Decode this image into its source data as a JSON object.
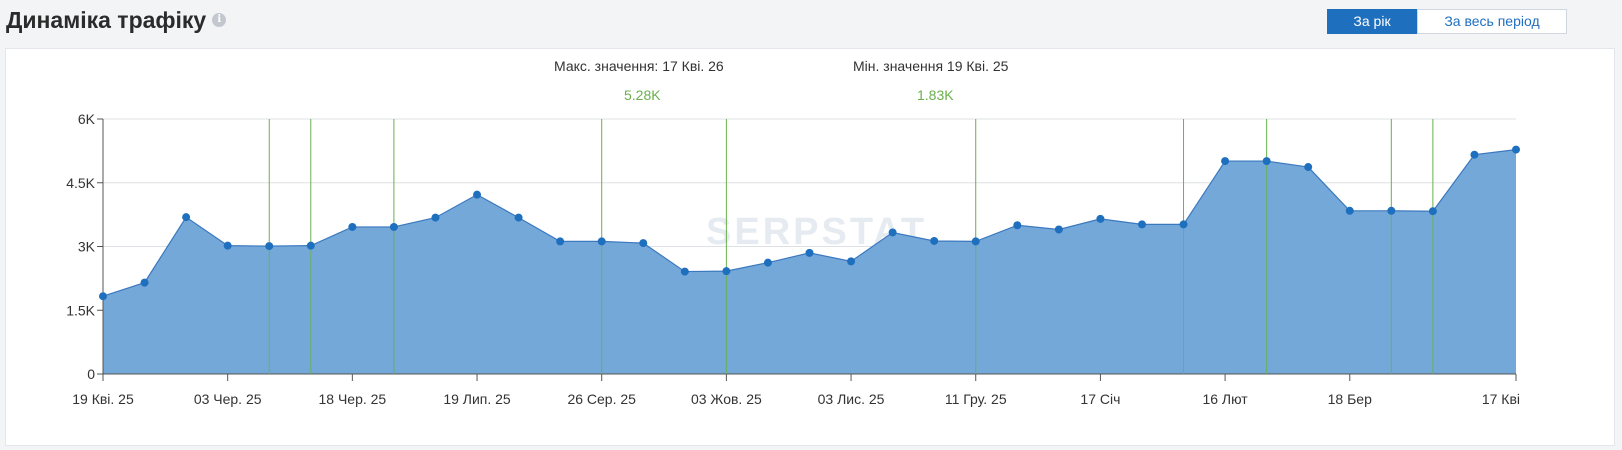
{
  "header": {
    "title": "Динаміка трафіку",
    "info_icon": "i",
    "toggle": [
      {
        "label": "За рік",
        "active": true
      },
      {
        "label": "За весь період",
        "active": false
      }
    ]
  },
  "colors": {
    "accent": "#1f6fbf",
    "area": "#74a8d8",
    "line": "#3a78bf",
    "point": "#1f6fbf",
    "marker_line": "#6ab04c",
    "annotation_value": "#6ab04c"
  },
  "annotations": {
    "max_label": "Макс. значення: 17 Кві. 26",
    "max_value": "5.28K",
    "min_label": "Мін. значення 19 Кві. 25",
    "min_value": "1.83K"
  },
  "watermark": "SERPSTAT",
  "chart_data": {
    "type": "area",
    "title": "Динаміка трафіку",
    "xlabel": "",
    "ylabel": "",
    "ylim": [
      0,
      6000
    ],
    "y_ticks": [
      0,
      1500,
      3000,
      4500,
      6000
    ],
    "y_tick_labels": [
      "0",
      "1.5K",
      "3K",
      "4.5K",
      "6K"
    ],
    "x_ticks": [
      {
        "index": 0,
        "label": "19 Кві. 25"
      },
      {
        "index": 3,
        "label": "03 Чер. 25"
      },
      {
        "index": 6,
        "label": "18 Чер. 25"
      },
      {
        "index": 9,
        "label": "19 Лип. 25"
      },
      {
        "index": 12,
        "label": "26 Сер. 25"
      },
      {
        "index": 15,
        "label": "03 Жов. 25"
      },
      {
        "index": 18,
        "label": "03 Лис. 25"
      },
      {
        "index": 21,
        "label": "11 Гру. 25"
      },
      {
        "index": 24,
        "label": "17 Січ"
      },
      {
        "index": 27,
        "label": "16 Лют"
      },
      {
        "index": 30,
        "label": "18 Бер"
      },
      {
        "index": 34,
        "label": "17 Кві"
      }
    ],
    "values": [
      1830,
      2150,
      3690,
      3020,
      3010,
      3020,
      3460,
      3460,
      3680,
      4220,
      3680,
      3120,
      3120,
      3080,
      2410,
      2420,
      2620,
      2850,
      2650,
      3330,
      3130,
      3120,
      3500,
      3400,
      3650,
      3520,
      3520,
      5010,
      5010,
      4870,
      3840,
      3840,
      3830,
      5160,
      5280
    ],
    "marker_indices": [
      4,
      5,
      7,
      12,
      15,
      21,
      26,
      28,
      31,
      32
    ],
    "grid": true,
    "legend": "none"
  }
}
